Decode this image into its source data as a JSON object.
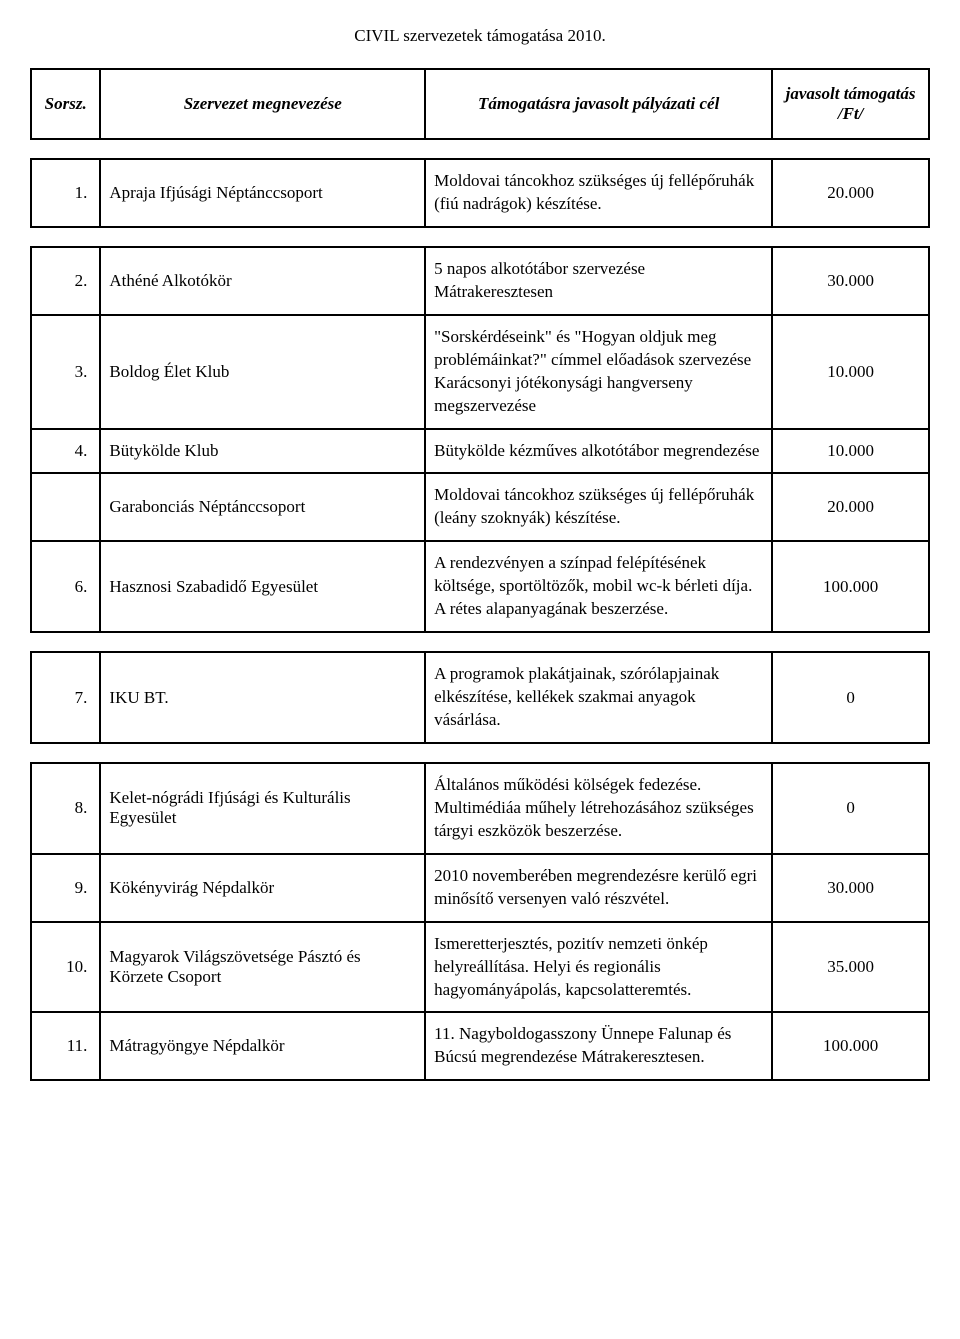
{
  "doc_title": "CIVIL szervezetek támogatása 2010.",
  "headers": {
    "num": "Sorsz.",
    "org": "Szervezet megnevezése",
    "goal": "Támogatásra javasolt pályázati cél",
    "amt": "javasolt támogatás /Ft/"
  },
  "rows": [
    {
      "num": "1.",
      "org": "Apraja Ifjúsági Néptánccsoport",
      "goal": "Moldovai táncokhoz szükséges új fellépőruhák (fiú nadrágok) készítése.",
      "amt": "20.000"
    },
    {
      "num": "2.",
      "org": "Athéné Alkotókör",
      "goal": "5 napos alkotótábor szervezése Mátrakeresztesen",
      "amt": "30.000"
    },
    {
      "num": "3.",
      "org": "Boldog Élet Klub",
      "goal": "\"Sorskérdéseink\" és \"Hogyan oldjuk meg problémáinkat?\" címmel előadások szervezése Karácsonyi jótékonysági hangverseny megszervezése",
      "amt": "10.000"
    },
    {
      "num": "4.",
      "org": "Bütykölde Klub",
      "goal": "Bütykölde kézműves alkotótábor megrendezése",
      "amt": "10.000"
    },
    {
      "num": "",
      "org": "Garabonciás Néptánccsoport",
      "goal": "Moldovai táncokhoz szükséges új fellépőruhák (leány szoknyák) készítése.",
      "amt": "20.000"
    },
    {
      "num": "6.",
      "org": "Hasznosi Szabadidő Egyesület",
      "goal": "A rendezvényen a színpad felépítésének költsége, sportöltözők, mobil wc-k bérleti díja. A rétes alapanyagának beszerzése.",
      "amt": "100.000"
    },
    {
      "num": "7.",
      "org": "IKU BT.",
      "goal": "A programok plakátjainak, szórólapjainak elkészítése, kellékek szakmai anyagok vásárlása.",
      "amt": "0"
    },
    {
      "num": "8.",
      "org": "Kelet-nógrádi Ifjúsági és Kulturális Egyesület",
      "goal": "Általános működési kölségek fedezése. Multimédiáa műhely létrehozásához szükséges tárgyi eszközök beszerzése.",
      "amt": "0"
    },
    {
      "num": "9.",
      "org": "Kökényvirág Népdalkör",
      "goal": "2010 novemberében megrendezésre kerülő egri minősítő versenyen való részvétel.",
      "amt": "30.000"
    },
    {
      "num": "10.",
      "org": "Magyarok Világszövetsége Pásztó és Körzete Csoport",
      "goal": "Ismeretterjesztés, pozitív nemzeti önkép helyreállítása. Helyi és regionális hagyományápolás, kapcsolatteremtés.",
      "amt": "35.000"
    },
    {
      "num": "11.",
      "org": "Mátragyöngye Népdalkör",
      "goal": "11. Nagyboldogasszony Ünnepe Falunap és Búcsú megrendezése Mátrakeresztesen.",
      "amt": "100.000"
    }
  ],
  "spacer_after": [
    0,
    1,
    6,
    7
  ]
}
